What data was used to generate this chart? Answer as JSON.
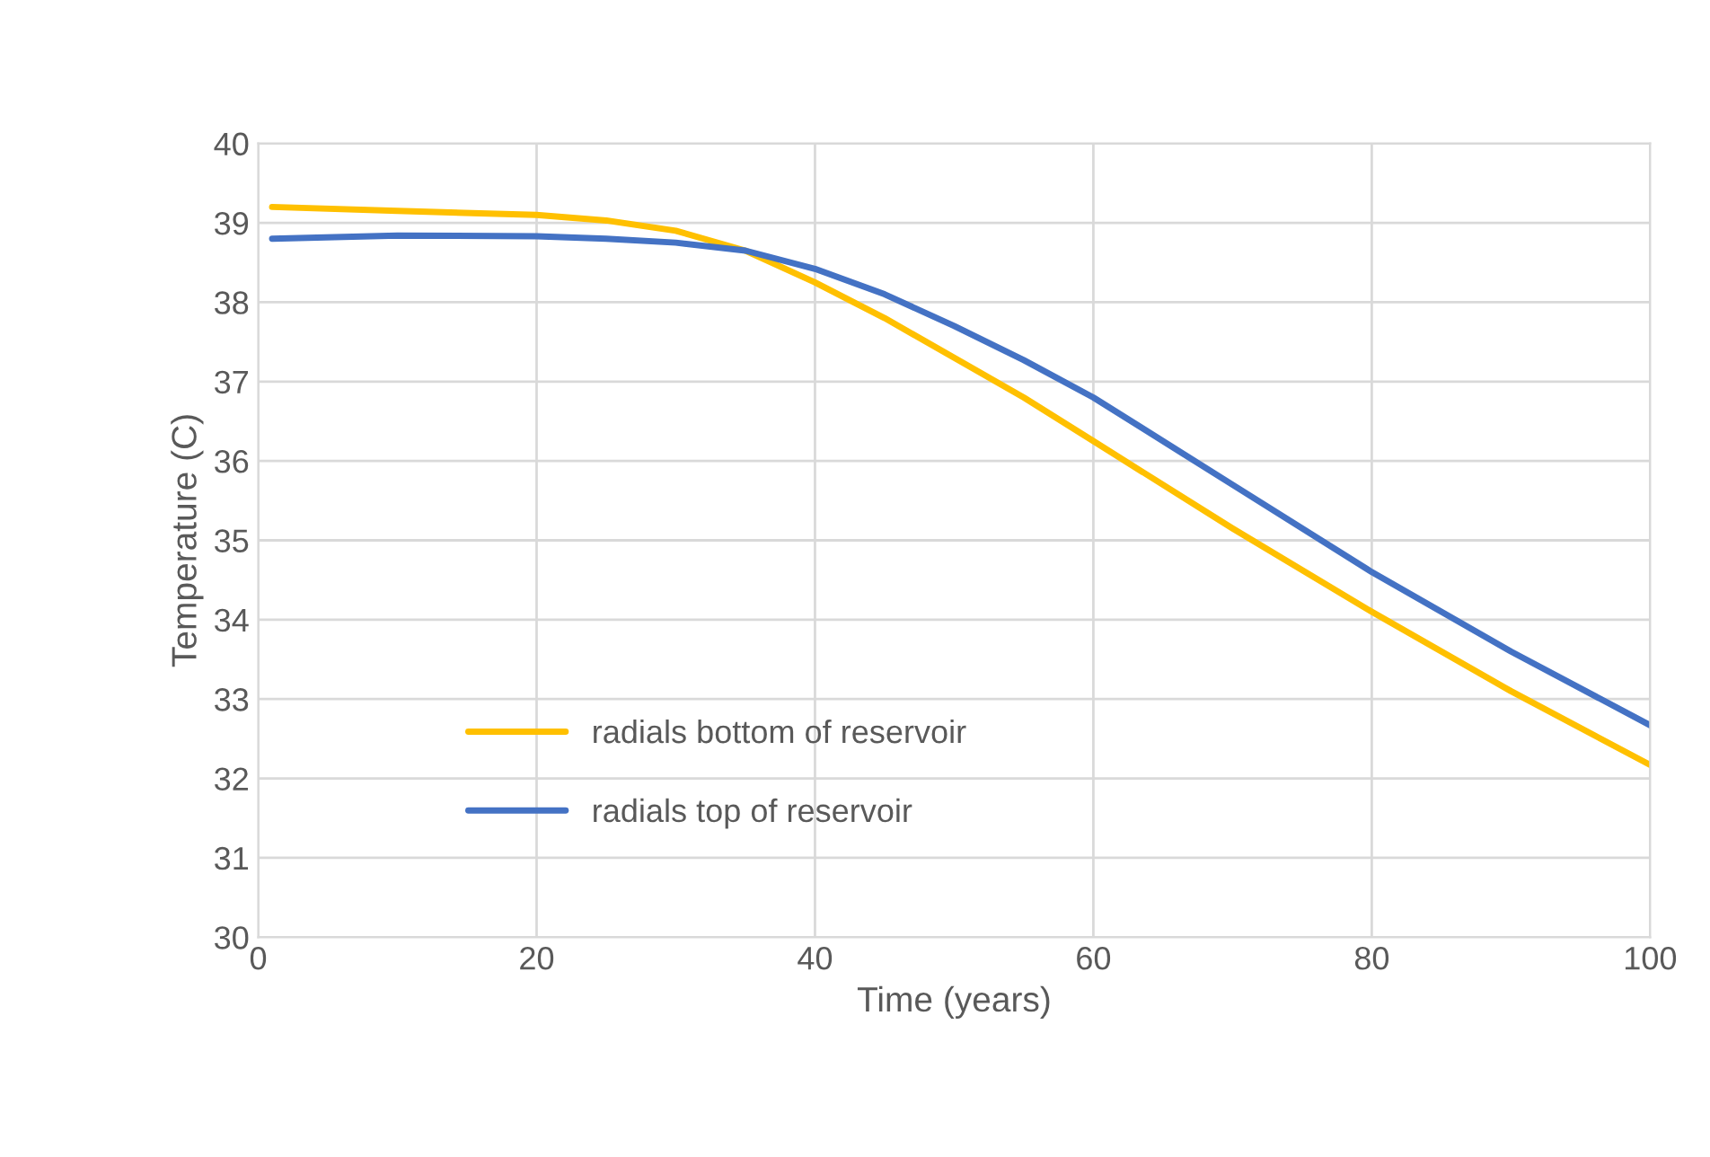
{
  "chart_data": {
    "type": "line",
    "xlabel": "Time (years)",
    "ylabel": "Temperature (C)",
    "xlim": [
      0,
      100
    ],
    "xticks": [
      0,
      20,
      40,
      60,
      80,
      100
    ],
    "ylim": [
      30,
      40
    ],
    "yticks": [
      30,
      31,
      32,
      33,
      34,
      35,
      36,
      37,
      38,
      39,
      40
    ],
    "grid": true,
    "legend": "lower left",
    "marker": "none",
    "line_style": "solid",
    "series": [
      {
        "name": "radials bottom of reservoir",
        "color": "#ffc000",
        "x": [
          1,
          10,
          20,
          25,
          30,
          35,
          40,
          45,
          50,
          55,
          60,
          70,
          80,
          90,
          100
        ],
        "values": [
          39.2,
          39.15,
          39.1,
          39.03,
          38.9,
          38.65,
          38.25,
          37.8,
          37.3,
          36.8,
          36.25,
          35.15,
          34.1,
          33.1,
          32.17
        ]
      },
      {
        "name": "radials top of reservoir",
        "color": "#4472c4",
        "x": [
          1,
          10,
          20,
          25,
          30,
          35,
          40,
          45,
          50,
          55,
          60,
          70,
          80,
          90,
          100
        ],
        "values": [
          38.8,
          38.84,
          38.83,
          38.8,
          38.75,
          38.65,
          38.42,
          38.1,
          37.7,
          37.27,
          36.8,
          35.7,
          34.6,
          33.6,
          32.67
        ]
      }
    ]
  }
}
